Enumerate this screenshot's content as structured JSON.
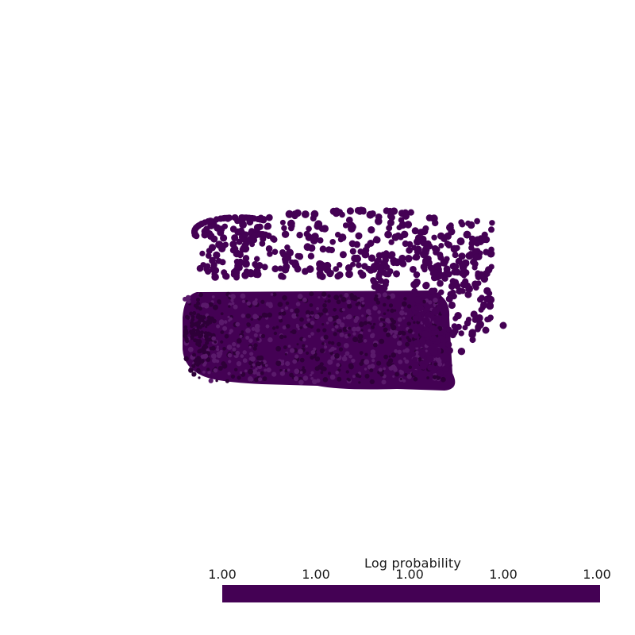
{
  "scene": {
    "background": "#ffffff",
    "point_color": "#440154",
    "point_color_dark": "#2e0038",
    "point_color_light": "#5a1a6b"
  },
  "colorbar": {
    "title": "Log probability",
    "ticks": [
      "1.00",
      "1.00",
      "1.00",
      "1.00",
      "1.00"
    ],
    "bar_color": "#440154"
  }
}
